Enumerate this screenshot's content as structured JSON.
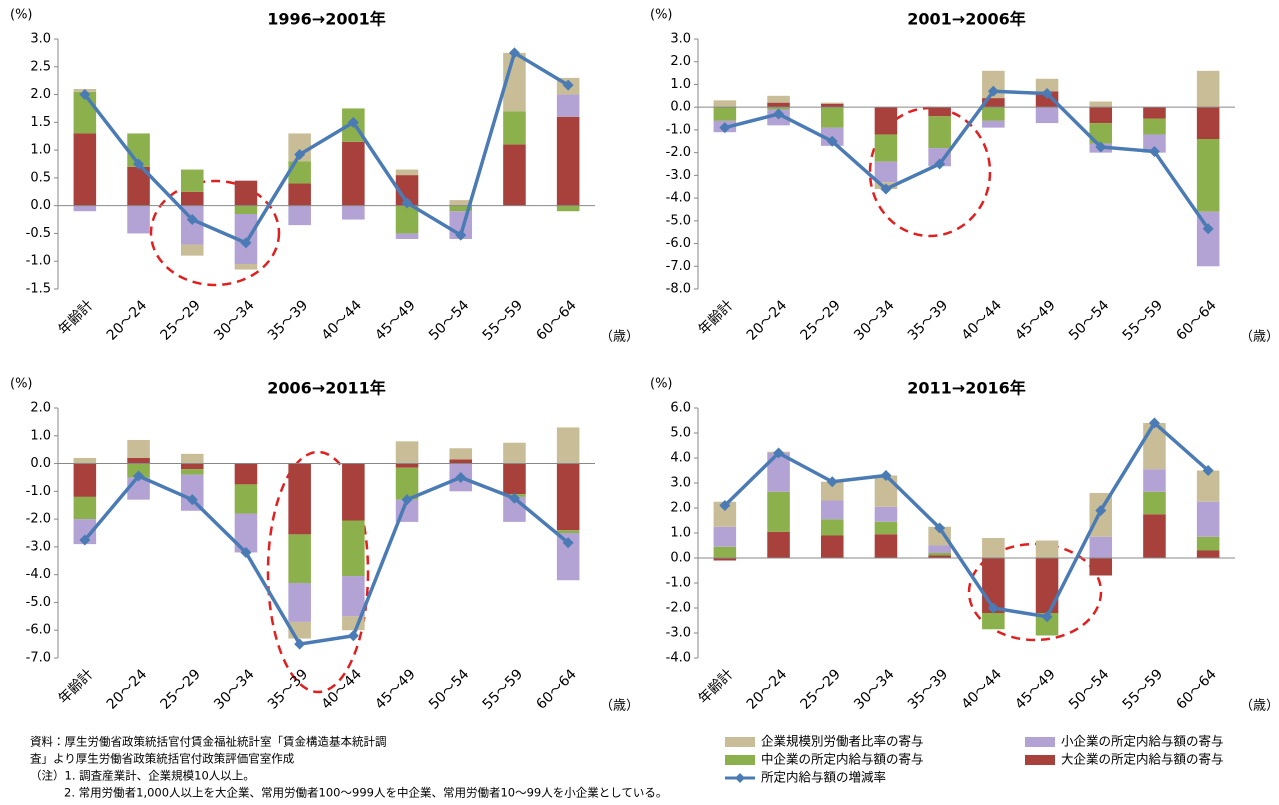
{
  "chart_data": [
    {
      "type": "bar",
      "title": "1996→2001年",
      "y_unit": "(%)",
      "x_unit": "（歳）",
      "categories": [
        "年齢計",
        "20～24",
        "25～29",
        "30～34",
        "35～39",
        "40～44",
        "45～49",
        "50～54",
        "55～59",
        "60～64"
      ],
      "ylim": [
        -1.5,
        3
      ],
      "yticks": [
        {
          "value": 3,
          "label": "3.0"
        },
        2.5,
        {
          "value": 2,
          "label": "2.0"
        },
        1.5,
        {
          "value": 1,
          "label": "1.0"
        },
        0.5,
        {
          "value": 0,
          "label": "0.0"
        },
        -0.5,
        {
          "value": -1,
          "label": "-1.0"
        },
        -1.5
      ],
      "series": [
        {
          "name": "大企業の所定内給与額の寄与",
          "color": "#a8403c",
          "values": [
            1.3,
            0.7,
            0.25,
            0.45,
            0.4,
            1.15,
            0.55,
            0,
            1.1,
            1.6
          ]
        },
        {
          "name": "中企業の所定内給与額の寄与",
          "color": "#8cb04c",
          "values": [
            0.75,
            0.6,
            0.4,
            -0.15,
            0.4,
            0.6,
            -0.5,
            -0.1,
            0.6,
            -0.1
          ]
        },
        {
          "name": "小企業の所定内給与額の寄与",
          "color": "#b3a2d4",
          "values": [
            -0.1,
            -0.5,
            -0.7,
            -0.9,
            -0.35,
            -0.25,
            -0.1,
            -0.5,
            0,
            0.4
          ]
        },
        {
          "name": "企業規模別労働者比率の寄与",
          "color": "#c9bd97",
          "values": [
            0.05,
            0,
            -0.2,
            -0.1,
            0.5,
            0,
            0.1,
            0.1,
            1.05,
            0.3
          ]
        },
        {
          "name": "所定内給与額の増減率",
          "color": "#4a7bb5",
          "type": "line",
          "values": [
            2.0,
            0.75,
            -0.25,
            -0.67,
            0.92,
            1.5,
            0.05,
            -0.53,
            2.75,
            2.17
          ]
        }
      ]
    },
    {
      "type": "bar",
      "title": "2001→2006年",
      "y_unit": "(%)",
      "x_unit": "（歳）",
      "categories": [
        "年齢計",
        "20～24",
        "25～29",
        "30～34",
        "35～39",
        "40～44",
        "45～49",
        "50～54",
        "55～59",
        "60～64"
      ],
      "ylim": [
        -8,
        3
      ],
      "yticks": [
        {
          "value": 3,
          "label": "3.0"
        },
        {
          "value": 2,
          "label": "2.0"
        },
        {
          "value": 1,
          "label": "1.0"
        },
        {
          "value": 0,
          "label": "0.0"
        },
        {
          "value": -1,
          "label": "-1.0"
        },
        {
          "value": -2,
          "label": "-2.0"
        },
        {
          "value": -3,
          "label": "-3.0"
        },
        {
          "value": -4,
          "label": "-4.0"
        },
        {
          "value": -5,
          "label": "-5.0"
        },
        {
          "value": -6,
          "label": "-6.0"
        },
        {
          "value": -7,
          "label": "-7.0"
        },
        {
          "value": -8,
          "label": "-8.0"
        }
      ],
      "series": [
        {
          "values": [
            0,
            0.2,
            0.15,
            -1.2,
            -0.4,
            0.4,
            0.7,
            -0.7,
            -0.5,
            -1.4
          ]
        },
        {
          "values": [
            -0.6,
            -0.1,
            -0.9,
            -1.2,
            -1.4,
            -0.6,
            0,
            -0.9,
            -0.7,
            -3.2
          ]
        },
        {
          "values": [
            -0.5,
            -0.7,
            -0.8,
            -0.9,
            -0.8,
            -0.3,
            -0.7,
            -0.4,
            -0.8,
            -2.4
          ]
        },
        {
          "values": [
            0.3,
            0.3,
            0.05,
            -0.3,
            0,
            1.2,
            0.55,
            0.25,
            0,
            1.6
          ]
        },
        {
          "type": "line",
          "values": [
            -0.9,
            -0.3,
            -1.5,
            -3.6,
            -2.5,
            0.7,
            0.6,
            -1.75,
            -1.95,
            -5.35
          ]
        }
      ]
    },
    {
      "type": "bar",
      "title": "2006→2011年",
      "y_unit": "(%)",
      "x_unit": "（歳）",
      "categories": [
        "年齢計",
        "20～24",
        "25～29",
        "30～34",
        "35～39",
        "40～44",
        "45～49",
        "50～54",
        "55～59",
        "60～64"
      ],
      "ylim": [
        -7,
        2
      ],
      "yticks": [
        {
          "value": 2,
          "label": "2.0"
        },
        {
          "value": 1,
          "label": "1.0"
        },
        {
          "value": 0,
          "label": "0.0"
        },
        {
          "value": -1,
          "label": "-1.0"
        },
        {
          "value": -2,
          "label": "-2.0"
        },
        {
          "value": -3,
          "label": "-3.0"
        },
        {
          "value": -4,
          "label": "-4.0"
        },
        {
          "value": -5,
          "label": "-5.0"
        },
        {
          "value": -6,
          "label": "-6.0"
        },
        {
          "value": -7,
          "label": "-7.0"
        }
      ],
      "series": [
        {
          "values": [
            -1.2,
            0.2,
            -0.2,
            -0.75,
            -2.55,
            -2.05,
            -0.15,
            0.15,
            -1.1,
            -2.4
          ]
        },
        {
          "values": [
            -0.8,
            -0.5,
            -0.2,
            -1.05,
            -1.75,
            -2.0,
            -1.15,
            0,
            -0.1,
            -0.1
          ]
        },
        {
          "values": [
            -0.9,
            -0.8,
            -1.3,
            -1.4,
            -1.4,
            -1.45,
            -0.8,
            -1.0,
            -0.9,
            -1.7
          ]
        },
        {
          "values": [
            0.2,
            0.65,
            0.35,
            0,
            -0.6,
            -0.5,
            0.8,
            0.4,
            0.75,
            1.3
          ]
        },
        {
          "type": "line",
          "values": [
            -2.75,
            -0.45,
            -1.3,
            -3.2,
            -6.5,
            -6.2,
            -1.3,
            -0.5,
            -1.25,
            -2.85
          ]
        }
      ]
    },
    {
      "type": "bar",
      "title": "2011→2016年",
      "y_unit": "(%)",
      "x_unit": "（歳）",
      "categories": [
        "年齢計",
        "20～24",
        "25～29",
        "30～34",
        "35～39",
        "40～44",
        "45～49",
        "50～54",
        "55～59",
        "60～64"
      ],
      "ylim": [
        -4,
        6
      ],
      "yticks": [
        {
          "value": 6,
          "label": "6.0"
        },
        {
          "value": 5,
          "label": "5.0"
        },
        {
          "value": 4,
          "label": "4.0"
        },
        {
          "value": 3,
          "label": "3.0"
        },
        {
          "value": 2,
          "label": "2.0"
        },
        {
          "value": 1,
          "label": "1.0"
        },
        {
          "value": 0,
          "label": "0.0"
        },
        {
          "value": -1,
          "label": "-1.0"
        },
        {
          "value": -2,
          "label": "-2.0"
        },
        {
          "value": -3,
          "label": "-3.0"
        },
        {
          "value": -4,
          "label": "-4.0"
        }
      ],
      "series": [
        {
          "values": [
            -0.1,
            1.05,
            0.9,
            0.95,
            0.1,
            -2.2,
            -2.2,
            -0.7,
            1.75,
            0.3
          ]
        },
        {
          "values": [
            0.45,
            1.6,
            0.65,
            0.5,
            0.1,
            -0.65,
            -0.9,
            0,
            0.9,
            0.55
          ]
        },
        {
          "values": [
            0.8,
            1.55,
            0.75,
            0.6,
            0.3,
            0,
            0,
            0.85,
            0.9,
            1.4
          ]
        },
        {
          "values": [
            1.0,
            0.05,
            0.75,
            1.25,
            0.75,
            0.8,
            0.7,
            1.75,
            1.85,
            1.25
          ]
        },
        {
          "type": "line",
          "values": [
            2.1,
            4.2,
            3.05,
            3.3,
            1.2,
            -2.0,
            -2.35,
            1.9,
            5.4,
            3.5
          ]
        }
      ]
    }
  ],
  "notes": {
    "source_1": "資料：厚生労働省政策統括官付賃金福祉統計室「賃金構造基本統計調",
    "source_2": "査」より厚生労働省政策統括官付政策評価官室作成",
    "note_1": "（注）1. 調査産業計、企業規模10人以上。",
    "note_2": "2. 常用労働者1,000人以上を大企業、常用労働者100～999人を中企業、常用労働者10～99人を小企業としている。"
  }
}
